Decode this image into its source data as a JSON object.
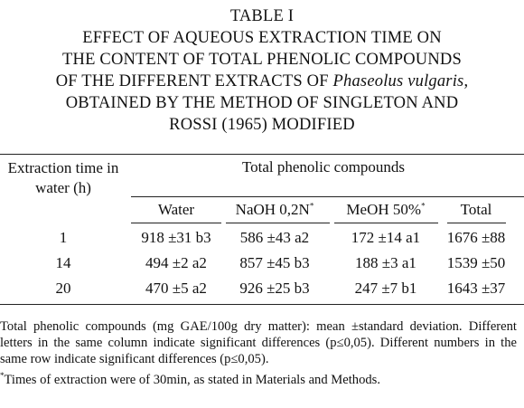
{
  "title": "TABLE I",
  "caption": {
    "lines": [
      "EFFECT OF AQUEOUS EXTRACTION TIME ON",
      "THE CONTENT OF TOTAL PHENOLIC COMPOUNDS"
    ],
    "line3": [
      "OF THE DIFFERENT EXTRACTS OF ",
      "Phaseolus vulgaris",
      ","
    ],
    "lines_end": [
      "OBTAINED BY THE METHOD OF SINGLETON AND",
      "ROSSI (1965) MODIFIED"
    ]
  },
  "table": {
    "row_header": "Extraction time in water (h)",
    "group_header": "Total phenolic compounds",
    "columns": [
      {
        "text": "Water"
      },
      {
        "text": "NaOH 0,2N",
        "mark": "*"
      },
      {
        "text": "MeOH 50%",
        "mark": "*"
      },
      {
        "text": "Total"
      }
    ],
    "rows": [
      [
        1,
        "918 ±31 b3",
        "586 ±43 a2",
        "172 ±14 a1",
        "1676 ±88"
      ],
      [
        14,
        "494 ±2 a2",
        "857 ±45 b3",
        "188 ±3 a1",
        "1539 ±50"
      ],
      [
        20,
        "470 ±5 a2",
        "926 ±25 b3",
        "247 ±7 b1",
        "1643 ±37"
      ]
    ]
  },
  "notes": {
    "text": "Total phenolic compounds (mg GAE/100g dry matter): mean ±standard deviation. Different letters in the same column indicate significant differences (p≤0,05). Different numbers in the same row indicate significant differences (p≤0,05).",
    "footnote_mark": "*",
    "footnote": "Times of extraction were of 30min, as stated in Materials and Methods."
  }
}
